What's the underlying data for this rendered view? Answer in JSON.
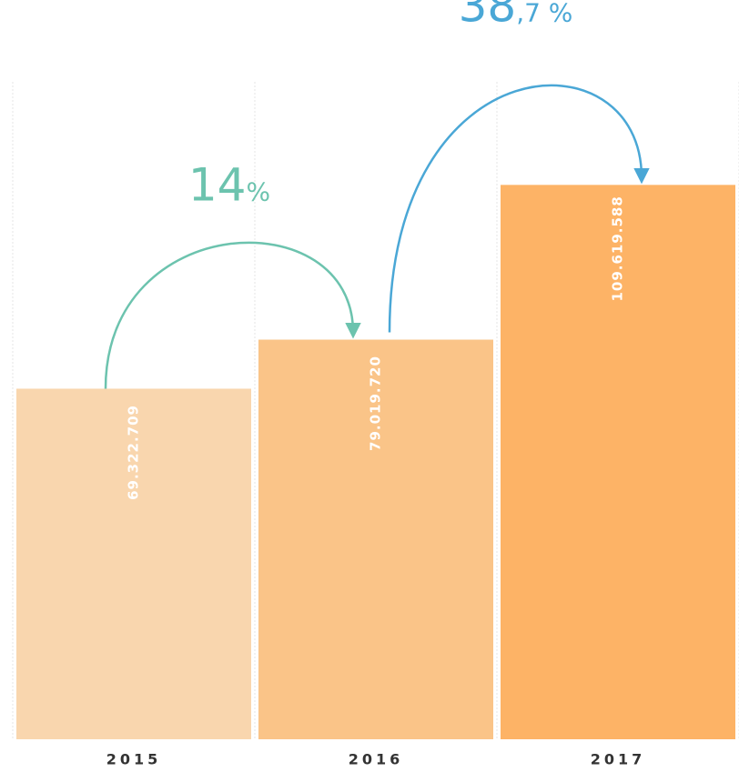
{
  "chart_data": {
    "type": "bar",
    "categories": [
      "2015",
      "2016",
      "2017"
    ],
    "values": [
      69322709,
      79019720,
      109619588
    ],
    "value_labels": [
      "69.322.709",
      "79.019.720",
      "109.619.588"
    ],
    "ylim": [
      0,
      130000000
    ],
    "grid": "vertical gridlines",
    "colors": [
      "#f9d6ae",
      "#fac488",
      "#fdb366"
    ],
    "annotations": [
      {
        "from": "2015",
        "to": "2016",
        "major": "14",
        "minor": "%",
        "color": "#6cc3ae"
      },
      {
        "from": "2016",
        "to": "2017",
        "major": "38",
        "minor": ",7 %",
        "color": "#4aa7d6"
      }
    ]
  }
}
